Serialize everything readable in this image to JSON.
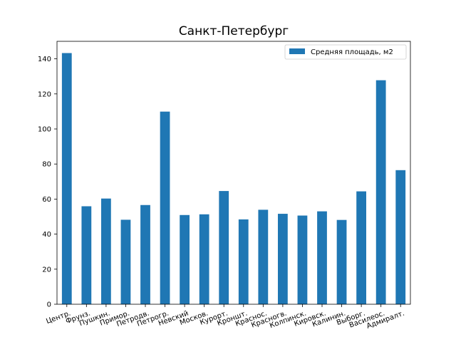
{
  "chart_data": {
    "type": "bar",
    "title": "Санкт-Петербург",
    "xlabel": "",
    "ylabel": "",
    "categories": [
      "Центр.",
      "Фрунз.",
      "Пушкин.",
      "Примор.",
      "Петродв.",
      "Петрогр.",
      "Невский",
      "Москов.",
      "Курорт.",
      "Кроншт.",
      "Краснос.",
      "Красногв.",
      "Колпинск.",
      "Кировск.",
      "Калинин.",
      "Выборг.",
      "Василеос.",
      "Адмиралт."
    ],
    "series": [
      {
        "name": "Средняя площадь, м2",
        "color": "#1f77b4",
        "values": [
          143.3,
          55.9,
          60.3,
          48.2,
          56.6,
          109.9,
          50.9,
          51.3,
          64.6,
          48.4,
          53.9,
          51.6,
          50.6,
          53.0,
          48.1,
          64.4,
          127.8,
          76.5
        ]
      }
    ],
    "ylim": [
      0,
      150
    ],
    "yticks": [
      0,
      20,
      40,
      60,
      80,
      100,
      120,
      140
    ],
    "grid": false,
    "legend_position": "top-right"
  }
}
